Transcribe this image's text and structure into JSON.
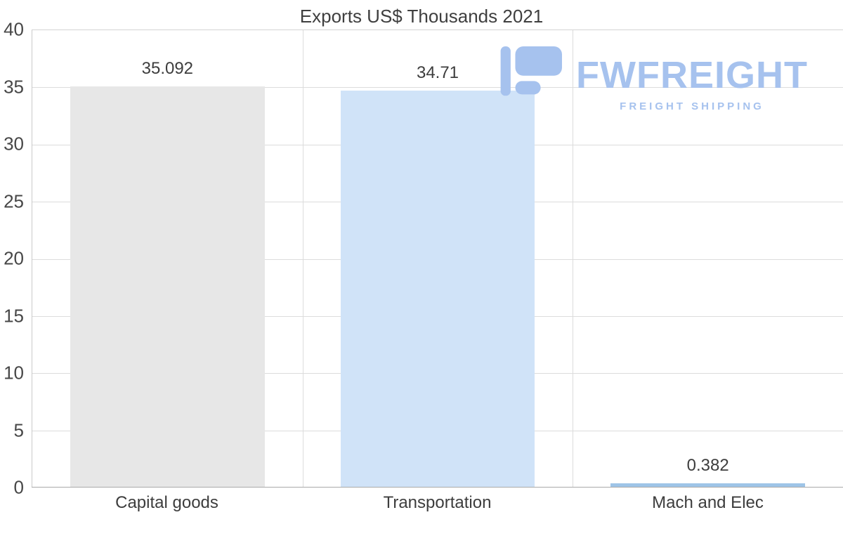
{
  "title": "Exports US$ Thousands 2021",
  "watermark": {
    "brand": "FWFREIGHT",
    "tagline": "FREIGHT SHIPPING",
    "color": "#a6c2ee"
  },
  "chart_data": {
    "type": "bar",
    "title": "Exports US$ Thousands 2021",
    "categories": [
      "Capital goods",
      "Transportation",
      "Mach and Elec"
    ],
    "values": [
      35.092,
      34.71,
      0.382
    ],
    "value_labels": [
      "35.092",
      "34.71",
      "0.382"
    ],
    "bar_colors": [
      "#e7e7e7",
      "#d0e3f8",
      "#9ec4e7"
    ],
    "xlabel": "",
    "ylabel": "",
    "ylim": [
      0,
      40
    ],
    "yticks": [
      0,
      5,
      10,
      15,
      20,
      25,
      30,
      35,
      40
    ],
    "grid": true,
    "legend": false
  }
}
